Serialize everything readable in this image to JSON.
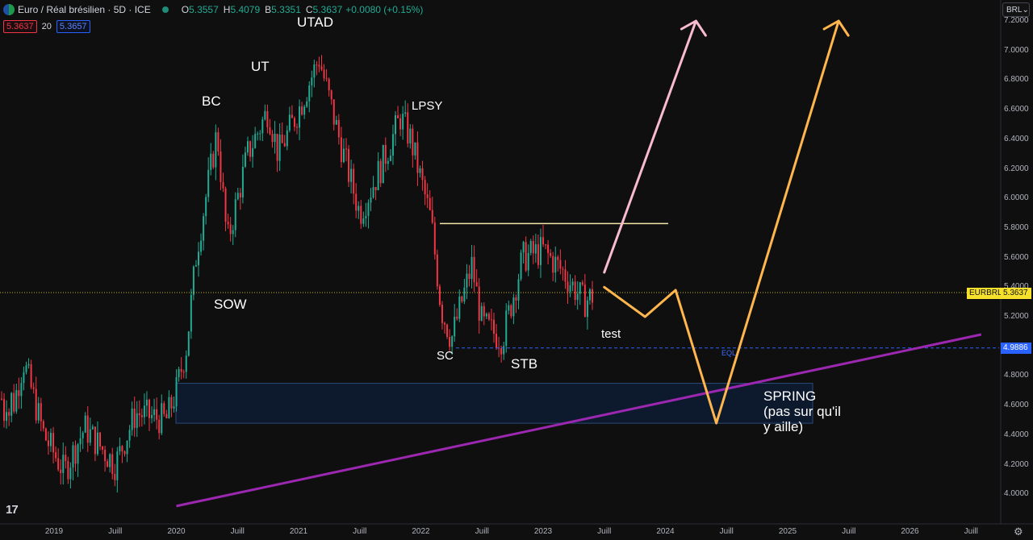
{
  "header": {
    "symbol_title": "Euro / Réal brésilien · 5D · ICE",
    "ohlc": [
      {
        "k": "O",
        "v": "5.3557"
      },
      {
        "k": "H",
        "v": "5.4079"
      },
      {
        "k": "B",
        "v": "5.3351"
      },
      {
        "k": "C",
        "v": "5.3637"
      }
    ],
    "change": "+0.0080 (+0.15%)",
    "sell_price": "5.3637",
    "spread": "20",
    "buy_price": "5.3657"
  },
  "currency_button": {
    "label": "BRL",
    "icon": "chevron-down-icon"
  },
  "y_axis": {
    "ticks": [
      "7.2000",
      "7.0000",
      "6.8000",
      "6.6000",
      "6.4000",
      "6.2000",
      "6.0000",
      "5.8000",
      "5.6000",
      "5.4000",
      "5.2000",
      "5.0000",
      "4.8000",
      "4.6000",
      "4.4000",
      "4.2000",
      "4.0000"
    ]
  },
  "x_axis": {
    "ticks": [
      "2019",
      "Juill",
      "2020",
      "Juill",
      "2021",
      "Juill",
      "2022",
      "Juill",
      "2023",
      "Juill",
      "2024",
      "Juill",
      "2025",
      "Juill",
      "2026",
      "Juill"
    ]
  },
  "price_tags": {
    "symbol": "EURBRL",
    "current": "5.3637",
    "eql_level": "4.9886"
  },
  "annotations": {
    "utad": "UTAD",
    "ut": "UT",
    "bc": "BC",
    "lpsy": "LPSY",
    "sow": "SOW",
    "sc": "SC",
    "stb": "STB",
    "test": "test",
    "eql": "EQL",
    "spring_line1": "SPRING",
    "spring_line2": "(pas sur qu'il",
    "spring_line3": "y aille)"
  },
  "colors": {
    "background": "#0f0f0f",
    "up_candle": "#22ab94",
    "down_candle": "#f23645",
    "resistance_line": "#f5e6a8",
    "trendline": "#9c27b0",
    "pink_arrow": "#f8bbd0",
    "orange_path": "#ffb74d",
    "eql_line": "#2962ff",
    "current_price_tag": "#f5e02b",
    "eql_tag": "#2962ff",
    "zone_fill": "#0d1b33"
  },
  "chart_data": {
    "type": "candlestick",
    "symbol": "EURBRL",
    "timeframe": "5D",
    "ylim": [
      3.9,
      7.3
    ],
    "price_waypoints": [
      [
        "2018-09",
        4.6
      ],
      [
        "2018-10",
        4.9
      ],
      [
        "2018-12",
        4.4
      ],
      [
        "2019-02",
        4.15
      ],
      [
        "2019-04",
        4.45
      ],
      [
        "2019-07",
        4.2
      ],
      [
        "2019-09",
        4.55
      ],
      [
        "2019-12",
        4.5
      ],
      [
        "2020-01",
        4.7
      ],
      [
        "2020-02",
        5.0
      ],
      [
        "2020-03",
        5.65
      ],
      [
        "2020-05",
        6.45
      ],
      [
        "2020-06",
        5.7
      ],
      [
        "2020-08",
        6.3
      ],
      [
        "2020-10",
        6.6
      ],
      [
        "2020-11",
        6.3
      ],
      [
        "2021-01",
        6.6
      ],
      [
        "2021-03",
        6.95
      ],
      [
        "2021-05",
        6.4
      ],
      [
        "2021-07",
        5.9
      ],
      [
        "2021-09",
        6.2
      ],
      [
        "2021-11",
        6.55
      ],
      [
        "2021-12",
        6.4
      ],
      [
        "2022-02",
        5.85
      ],
      [
        "2022-03",
        5.25
      ],
      [
        "2022-04",
        5.05
      ],
      [
        "2022-06",
        5.55
      ],
      [
        "2022-07",
        5.15
      ],
      [
        "2022-09",
        5.05
      ],
      [
        "2022-11",
        5.6
      ],
      [
        "2023-01",
        5.65
      ],
      [
        "2023-03",
        5.5
      ],
      [
        "2023-05",
        5.3
      ],
      [
        "2023-06",
        5.35
      ]
    ],
    "levels": {
      "resistance": 5.83,
      "eql": 4.9886,
      "current": 5.3637
    },
    "demand_zone": {
      "top": 4.75,
      "bottom": 4.48
    },
    "trendline": [
      [
        "2020-01",
        3.92
      ],
      [
        "2026-08",
        5.08
      ]
    ],
    "projections": {
      "bullish_direct": [
        [
          "2023-07",
          5.5
        ],
        [
          "2024-04",
          7.2
        ]
      ],
      "spring_scenario": [
        [
          "2023-07",
          5.4
        ],
        [
          "2023-11",
          5.2
        ],
        [
          "2024-02",
          5.38
        ],
        [
          "2024-06",
          4.48
        ],
        [
          "2025-06",
          7.2
        ]
      ]
    }
  }
}
